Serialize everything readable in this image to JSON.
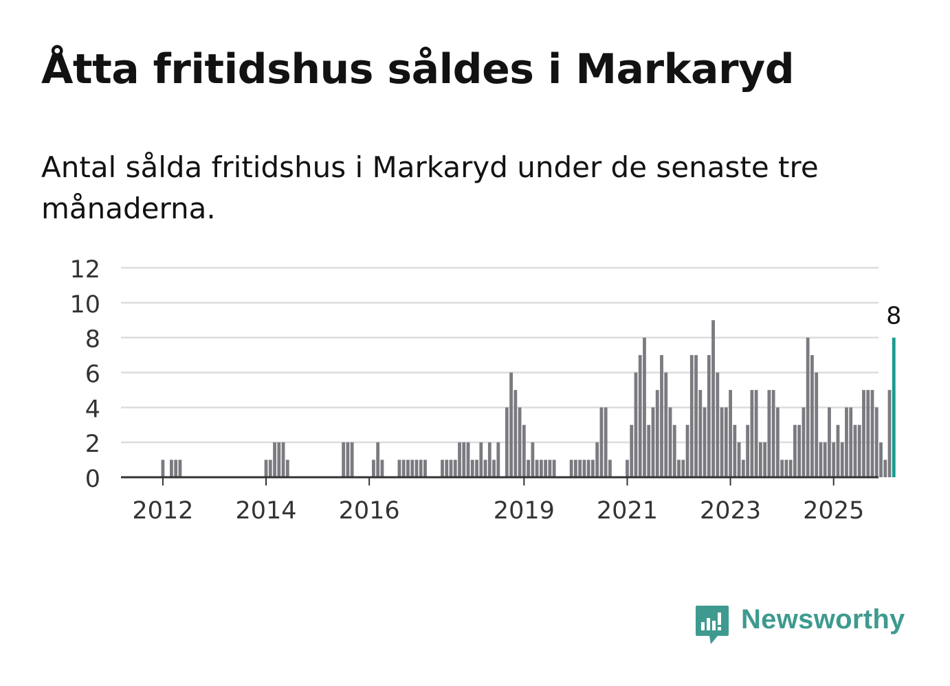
{
  "title": "Åtta fritidshus såldes i Markaryd",
  "subtitle": "Antal sålda fritidshus i Markaryd under de senaste tre månaderna.",
  "brand": {
    "name": "Newsworthy",
    "color": "#3e9a8f",
    "icon": "newsworthy-logo-icon"
  },
  "chart_data": {
    "type": "bar",
    "x_start": "2011-09",
    "x_step": "month",
    "ylim": [
      0,
      12
    ],
    "yticks": [
      0,
      2,
      4,
      6,
      8,
      10,
      12
    ],
    "xticks": [
      {
        "label": "2012",
        "x": "2012-01"
      },
      {
        "label": "2014",
        "x": "2014-01"
      },
      {
        "label": "2016",
        "x": "2016-01"
      },
      {
        "label": "2019",
        "x": "2019-01"
      },
      {
        "label": "2021",
        "x": "2021-01"
      },
      {
        "label": "2023",
        "x": "2023-01"
      },
      {
        "label": "2025",
        "x": "2025-01"
      }
    ],
    "grid": true,
    "bar_color": "#7a7a80",
    "highlight_color": "#1a9b8f",
    "highlight_label": "8",
    "values": [
      0,
      0,
      0,
      0,
      1,
      0,
      1,
      1,
      1,
      0,
      0,
      0,
      0,
      0,
      0,
      0,
      0,
      0,
      0,
      0,
      0,
      0,
      0,
      0,
      0,
      0,
      0,
      0,
      1,
      1,
      2,
      2,
      2,
      1,
      0,
      0,
      0,
      0,
      0,
      0,
      0,
      0,
      0,
      0,
      0,
      0,
      2,
      2,
      2,
      0,
      0,
      0,
      0,
      1,
      2,
      1,
      0,
      0,
      0,
      1,
      1,
      1,
      1,
      1,
      1,
      1,
      0,
      0,
      0,
      1,
      1,
      1,
      1,
      2,
      2,
      2,
      1,
      1,
      2,
      1,
      2,
      1,
      2,
      0,
      4,
      6,
      5,
      4,
      3,
      1,
      2,
      1,
      1,
      1,
      1,
      1,
      0,
      0,
      0,
      1,
      1,
      1,
      1,
      1,
      1,
      2,
      4,
      4,
      1,
      0,
      0,
      0,
      1,
      3,
      6,
      7,
      8,
      3,
      4,
      5,
      7,
      6,
      4,
      3,
      1,
      1,
      3,
      7,
      7,
      5,
      4,
      7,
      9,
      6,
      4,
      4,
      5,
      3,
      2,
      1,
      3,
      5,
      5,
      2,
      2,
      5,
      5,
      4,
      1,
      1,
      1,
      3,
      3,
      4,
      8,
      7,
      6,
      2,
      2,
      4,
      2,
      3,
      2,
      4,
      4,
      3,
      3,
      5,
      5,
      5,
      4,
      2,
      1,
      5,
      8
    ]
  }
}
